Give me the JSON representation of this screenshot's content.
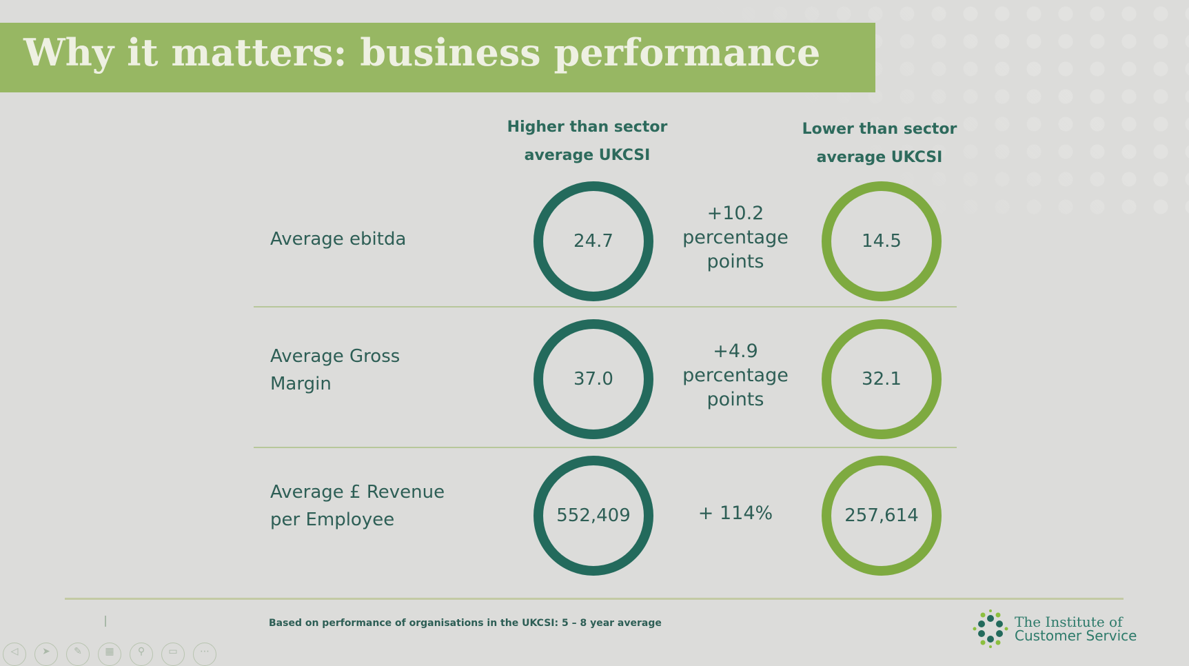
{
  "title": "Why it matters: business performance",
  "columns": {
    "higher": [
      "Higher than sector",
      "average UKCSI"
    ],
    "lower": [
      "Lower than sector",
      "average UKCSI"
    ]
  },
  "rows": [
    {
      "label": [
        "Average ebitda"
      ],
      "higher": "24.7",
      "diff": [
        "+10.2",
        "percentage",
        "points"
      ],
      "lower": "14.5"
    },
    {
      "label": [
        "Average Gross",
        "Margin"
      ],
      "higher": "37.0",
      "diff": [
        "+4.9",
        "percentage",
        "points"
      ],
      "lower": "32.1"
    },
    {
      "label": [
        "Average £ Revenue",
        "per Employee"
      ],
      "higher": "552,409",
      "diff": [
        "+ 114%"
      ],
      "lower": "257,614"
    }
  ],
  "footnote": "Based on performance of organisations in the UKCSI: 5 – 8 year average",
  "logo": {
    "line1": "The Institute of",
    "line2": "Customer Service"
  },
  "colors": {
    "dark_ring": "#236a5c",
    "light_ring": "#7eaa40",
    "title_bar": "#97b763"
  }
}
